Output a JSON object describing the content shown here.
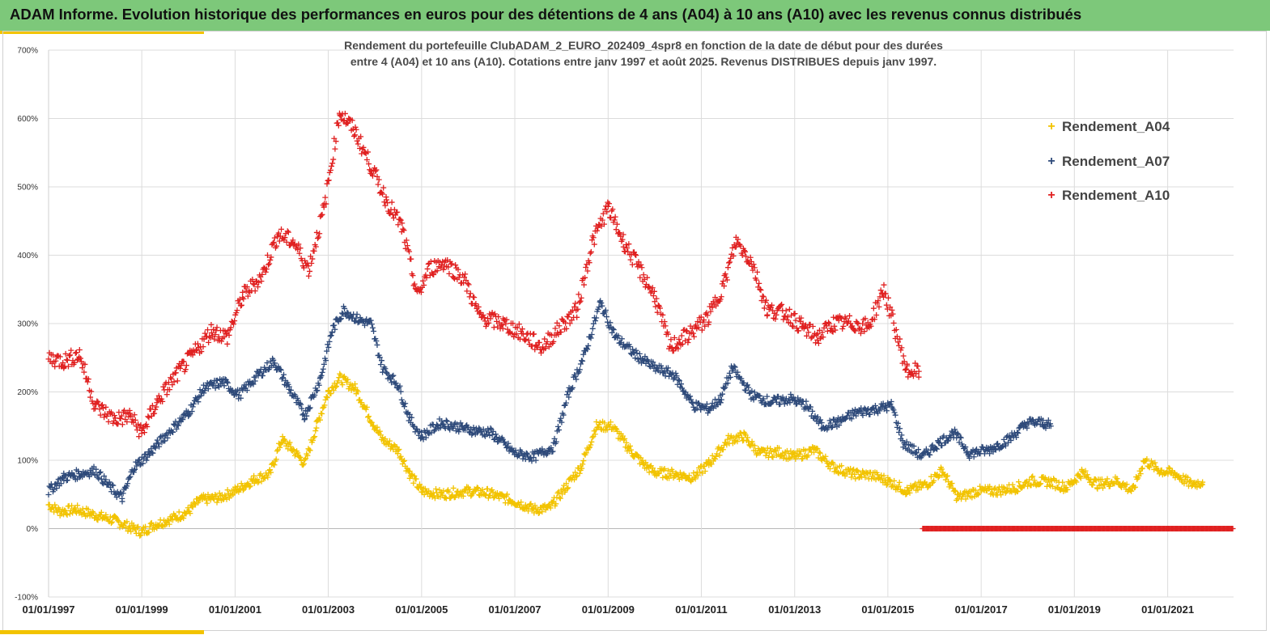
{
  "header": {
    "title": "ADAM Informe. Evolution historique des performances en euros pour des détentions de 4 ans (A04) à 10 ans (A10) avec les revenus connus distribués"
  },
  "chart_data": {
    "type": "scatter",
    "title_line1": "Rendement du portefeuille ClubADAM_2_EURO_202409_4spr8  en fonction de la date de début pour des durées",
    "title_line2": "entre 4 (A04) et 10 ans (A10). Cotations entre janv 1997 et août 2025. Revenus DISTRIBUES depuis janv 1997.",
    "x_axis": {
      "type": "date",
      "range": [
        "1997-01-01",
        "2022-06-01"
      ],
      "tick_labels": [
        "01/01/1997",
        "01/01/1999",
        "01/01/2001",
        "01/01/2003",
        "01/01/2005",
        "01/01/2007",
        "01/01/2009",
        "01/01/2011",
        "01/01/2013",
        "01/01/2015",
        "01/01/2017",
        "01/01/2019",
        "01/01/2021"
      ]
    },
    "y_axis": {
      "range": [
        -100,
        700
      ],
      "unit": "%",
      "tick_labels": [
        "-100%",
        "0%",
        "100%",
        "200%",
        "300%",
        "400%",
        "500%",
        "600%",
        "700%"
      ]
    },
    "grid": "vertical-and-horizontal",
    "legend_position": "top-right",
    "marker": "+",
    "series": [
      {
        "name": "Rendement_A04",
        "color": "#f2c300",
        "points": [
          [
            "1997-01-01",
            35
          ],
          [
            "1997-04-01",
            25
          ],
          [
            "1997-08-01",
            28
          ],
          [
            "1998-01-01",
            20
          ],
          [
            "1998-06-01",
            12
          ],
          [
            "1998-10-01",
            2
          ],
          [
            "1999-01-01",
            -5
          ],
          [
            "1999-04-01",
            5
          ],
          [
            "1999-09-01",
            15
          ],
          [
            "2000-01-01",
            25
          ],
          [
            "2000-04-01",
            42
          ],
          [
            "2000-09-01",
            45
          ],
          [
            "2001-01-01",
            55
          ],
          [
            "2001-06-01",
            72
          ],
          [
            "2001-10-01",
            80
          ],
          [
            "2002-01-01",
            130
          ],
          [
            "2002-04-01",
            115
          ],
          [
            "2002-07-01",
            95
          ],
          [
            "2002-10-01",
            150
          ],
          [
            "2003-01-01",
            200
          ],
          [
            "2003-04-01",
            220
          ],
          [
            "2003-08-01",
            205
          ],
          [
            "2003-12-01",
            160
          ],
          [
            "2004-03-01",
            130
          ],
          [
            "2004-07-01",
            115
          ],
          [
            "2004-10-01",
            80
          ],
          [
            "2005-01-01",
            55
          ],
          [
            "2005-06-01",
            50
          ],
          [
            "2006-01-01",
            55
          ],
          [
            "2006-06-01",
            52
          ],
          [
            "2007-01-01",
            40
          ],
          [
            "2007-06-01",
            28
          ],
          [
            "2007-10-01",
            30
          ],
          [
            "2008-02-01",
            60
          ],
          [
            "2008-06-01",
            90
          ],
          [
            "2008-10-01",
            150
          ],
          [
            "2009-02-01",
            150
          ],
          [
            "2009-06-01",
            120
          ],
          [
            "2009-10-01",
            95
          ],
          [
            "2010-01-01",
            82
          ],
          [
            "2010-06-01",
            80
          ],
          [
            "2010-11-01",
            75
          ],
          [
            "2011-03-01",
            95
          ],
          [
            "2011-08-01",
            130
          ],
          [
            "2011-12-01",
            135
          ],
          [
            "2012-04-01",
            110
          ],
          [
            "2012-09-01",
            112
          ],
          [
            "2013-01-01",
            105
          ],
          [
            "2013-06-01",
            115
          ],
          [
            "2013-11-01",
            90
          ],
          [
            "2014-04-01",
            80
          ],
          [
            "2014-09-01",
            78
          ],
          [
            "2015-01-01",
            70
          ],
          [
            "2015-06-01",
            55
          ],
          [
            "2015-11-01",
            65
          ],
          [
            "2016-03-01",
            85
          ],
          [
            "2016-07-01",
            45
          ],
          [
            "2016-12-01",
            55
          ],
          [
            "2017-05-01",
            55
          ],
          [
            "2017-10-01",
            60
          ],
          [
            "2018-02-01",
            70
          ],
          [
            "2018-07-01",
            68
          ],
          [
            "2018-11-01",
            60
          ],
          [
            "2019-03-01",
            82
          ],
          [
            "2019-07-01",
            65
          ],
          [
            "2019-12-01",
            70
          ],
          [
            "2020-04-01",
            55
          ],
          [
            "2020-07-01",
            100
          ],
          [
            "2020-11-01",
            85
          ],
          [
            "2021-03-01",
            80
          ],
          [
            "2021-07-01",
            65
          ],
          [
            "2021-10-01",
            68
          ]
        ]
      },
      {
        "name": "Rendement_A07",
        "color": "#2e4a7a",
        "points": [
          [
            "1997-01-01",
            55
          ],
          [
            "1997-05-01",
            75
          ],
          [
            "1997-09-01",
            80
          ],
          [
            "1998-01-01",
            85
          ],
          [
            "1998-05-01",
            60
          ],
          [
            "1998-08-01",
            45
          ],
          [
            "1998-11-01",
            90
          ],
          [
            "1999-03-01",
            110
          ],
          [
            "1999-07-01",
            135
          ],
          [
            "2000-01-01",
            170
          ],
          [
            "2000-05-01",
            205
          ],
          [
            "2000-10-01",
            215
          ],
          [
            "2001-02-01",
            195
          ],
          [
            "2001-07-01",
            225
          ],
          [
            "2001-11-01",
            245
          ],
          [
            "2002-03-01",
            205
          ],
          [
            "2002-07-01",
            165
          ],
          [
            "2002-11-01",
            220
          ],
          [
            "2003-02-01",
            290
          ],
          [
            "2003-05-01",
            320
          ],
          [
            "2003-09-01",
            305
          ],
          [
            "2003-12-01",
            300
          ],
          [
            "2004-03-01",
            235
          ],
          [
            "2004-07-01",
            210
          ],
          [
            "2004-10-01",
            160
          ],
          [
            "2005-01-01",
            135
          ],
          [
            "2005-06-01",
            155
          ],
          [
            "2006-01-01",
            145
          ],
          [
            "2006-07-01",
            140
          ],
          [
            "2007-01-01",
            110
          ],
          [
            "2007-06-01",
            105
          ],
          [
            "2007-11-01",
            120
          ],
          [
            "2008-03-01",
            200
          ],
          [
            "2008-07-01",
            255
          ],
          [
            "2008-11-01",
            330
          ],
          [
            "2009-03-01",
            280
          ],
          [
            "2009-08-01",
            255
          ],
          [
            "2010-01-01",
            235
          ],
          [
            "2010-06-01",
            225
          ],
          [
            "2010-11-01",
            180
          ],
          [
            "2011-03-01",
            175
          ],
          [
            "2011-06-01",
            190
          ],
          [
            "2011-09-01",
            235
          ],
          [
            "2012-02-01",
            195
          ],
          [
            "2012-07-01",
            185
          ],
          [
            "2012-12-01",
            190
          ],
          [
            "2013-04-01",
            180
          ],
          [
            "2013-08-01",
            150
          ],
          [
            "2013-12-01",
            155
          ],
          [
            "2014-05-01",
            170
          ],
          [
            "2014-10-01",
            175
          ],
          [
            "2015-02-01",
            180
          ],
          [
            "2015-05-01",
            125
          ],
          [
            "2015-10-01",
            105
          ],
          [
            "2016-02-01",
            125
          ],
          [
            "2016-06-01",
            140
          ],
          [
            "2016-10-01",
            110
          ],
          [
            "2017-03-01",
            115
          ],
          [
            "2017-08-01",
            130
          ],
          [
            "2018-01-01",
            155
          ],
          [
            "2018-05-01",
            155
          ],
          [
            "2018-07-01",
            150
          ]
        ]
      },
      {
        "name": "Rendement_A10",
        "color": "#e02020",
        "points": [
          [
            "1997-01-01",
            250
          ],
          [
            "1997-05-01",
            245
          ],
          [
            "1997-09-01",
            255
          ],
          [
            "1998-01-01",
            180
          ],
          [
            "1998-06-01",
            160
          ],
          [
            "1998-10-01",
            165
          ],
          [
            "1999-01-01",
            140
          ],
          [
            "1999-05-01",
            185
          ],
          [
            "1999-10-01",
            225
          ],
          [
            "2000-03-01",
            260
          ],
          [
            "2000-07-01",
            290
          ],
          [
            "2000-11-01",
            280
          ],
          [
            "2001-03-01",
            340
          ],
          [
            "2001-08-01",
            370
          ],
          [
            "2001-12-01",
            430
          ],
          [
            "2002-04-01",
            420
          ],
          [
            "2002-08-01",
            380
          ],
          [
            "2002-12-01",
            470
          ],
          [
            "2003-04-01",
            610
          ],
          [
            "2003-08-01",
            580
          ],
          [
            "2003-12-01",
            530
          ],
          [
            "2004-04-01",
            480
          ],
          [
            "2004-08-01",
            440
          ],
          [
            "2004-12-01",
            340
          ],
          [
            "2005-03-01",
            380
          ],
          [
            "2005-07-01",
            390
          ],
          [
            "2005-12-01",
            365
          ],
          [
            "2006-04-01",
            310
          ],
          [
            "2006-10-01",
            300
          ],
          [
            "2007-03-01",
            285
          ],
          [
            "2007-08-01",
            265
          ],
          [
            "2007-12-01",
            290
          ],
          [
            "2008-05-01",
            320
          ],
          [
            "2008-09-01",
            420
          ],
          [
            "2009-01-01",
            470
          ],
          [
            "2009-05-01",
            420
          ],
          [
            "2009-09-01",
            380
          ],
          [
            "2010-01-01",
            340
          ],
          [
            "2010-05-01",
            265
          ],
          [
            "2010-10-01",
            285
          ],
          [
            "2011-03-01",
            310
          ],
          [
            "2011-07-01",
            360
          ],
          [
            "2011-10-01",
            420
          ],
          [
            "2012-02-01",
            390
          ],
          [
            "2012-06-01",
            320
          ],
          [
            "2012-11-01",
            315
          ],
          [
            "2013-03-01",
            295
          ],
          [
            "2013-07-01",
            280
          ],
          [
            "2013-11-01",
            300
          ],
          [
            "2014-04-01",
            300
          ],
          [
            "2014-08-01",
            295
          ],
          [
            "2014-12-01",
            350
          ],
          [
            "2015-03-01",
            290
          ],
          [
            "2015-06-01",
            230
          ],
          [
            "2015-09-01",
            230
          ]
        ],
        "zero_run": {
          "from": "2015-10-01",
          "to": "2022-06-01",
          "value": 0
        }
      }
    ]
  }
}
